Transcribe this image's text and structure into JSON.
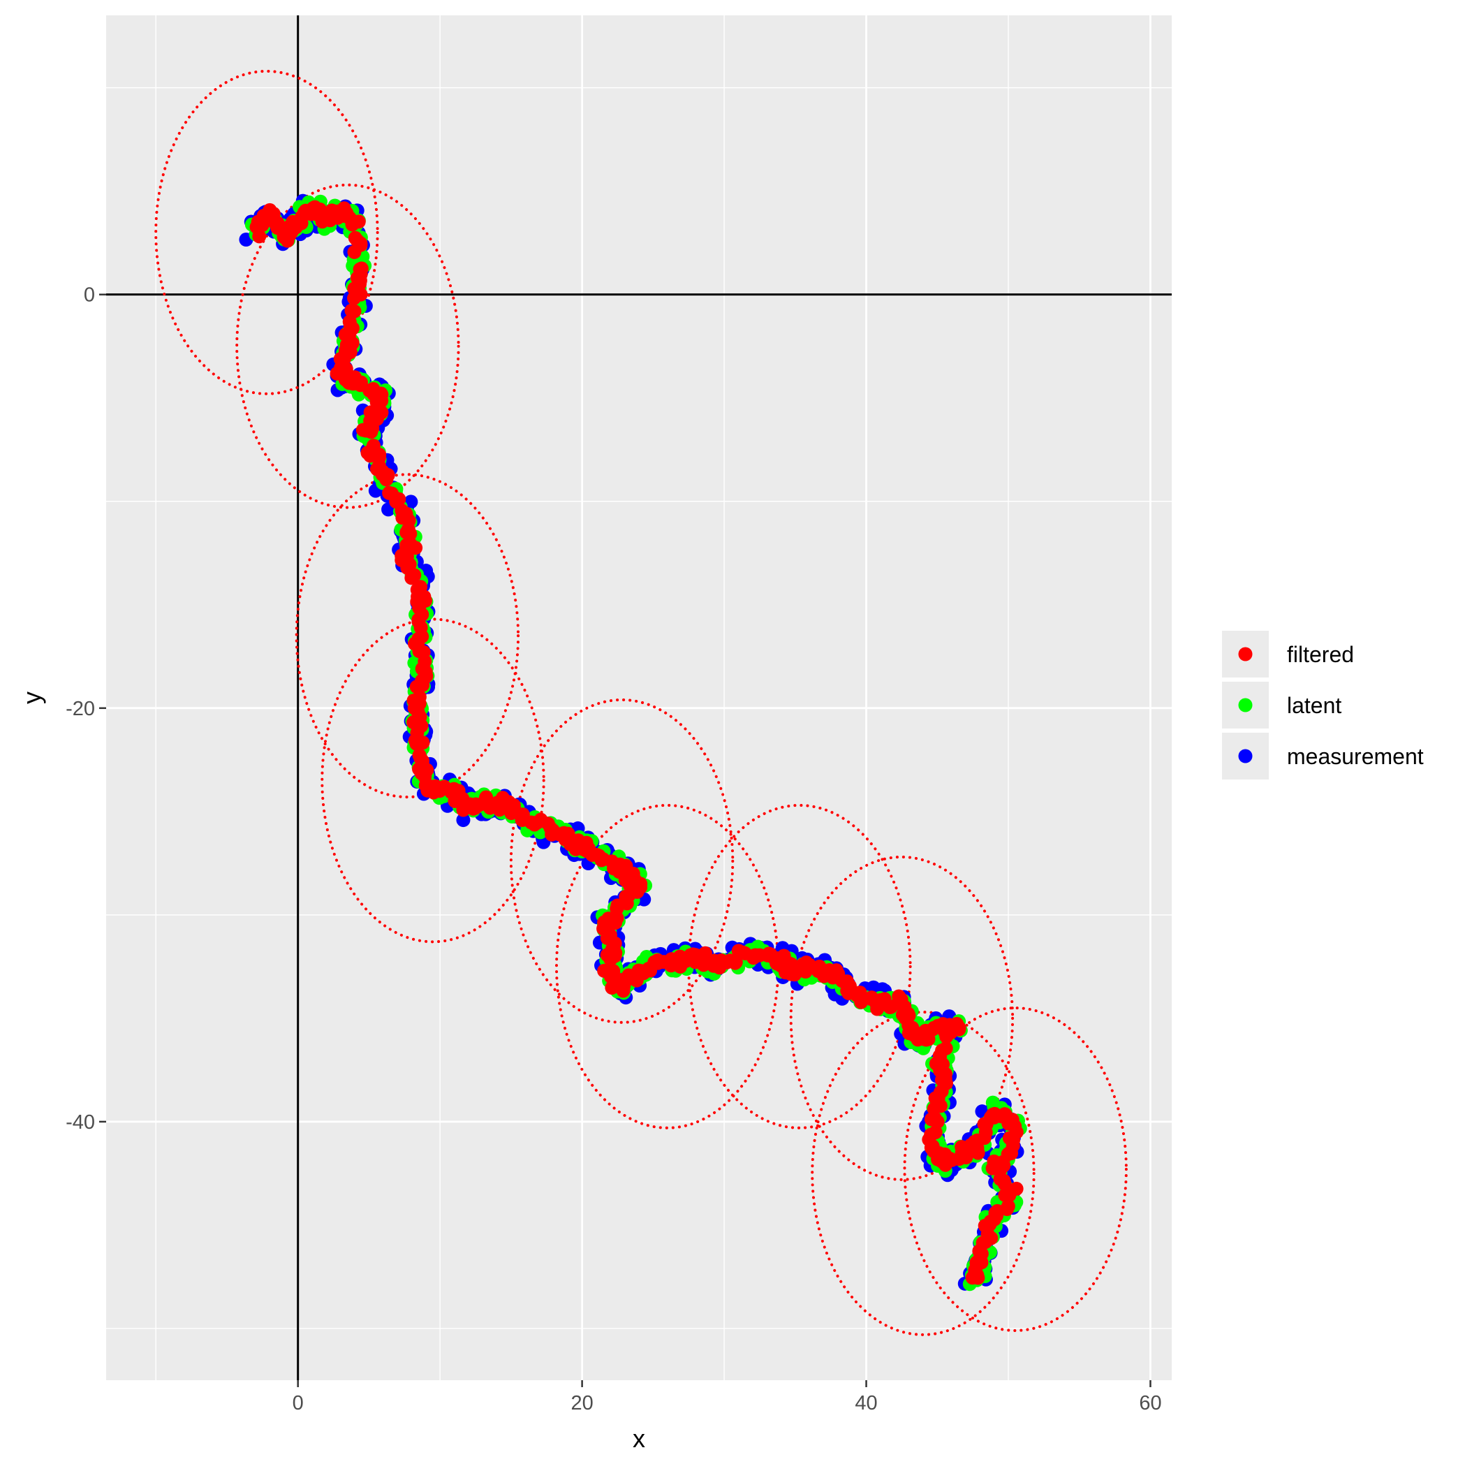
{
  "chart_data": {
    "type": "scatter",
    "title": "",
    "xlabel": "x",
    "ylabel": "y",
    "xlim": [
      -13.5,
      61.5
    ],
    "ylim": [
      -52.5,
      13.5
    ],
    "x_ticks": [
      0,
      20,
      40,
      60
    ],
    "x_tick_labels": [
      "0",
      "20",
      "40",
      "60"
    ],
    "y_ticks": [
      -40,
      -20,
      0
    ],
    "y_tick_labels": [
      "-40",
      "-20",
      "0"
    ],
    "x_minor_gridlines": [
      -10,
      10,
      30,
      50
    ],
    "y_minor_gridlines": [
      -50,
      -30,
      -10,
      10
    ],
    "grid": true,
    "reference_lines": {
      "x": 0,
      "y": 0
    },
    "legend": {
      "position": "right",
      "entries": [
        {
          "label": "filtered",
          "color": "#ff0000"
        },
        {
          "label": "latent",
          "color": "#00ff00"
        },
        {
          "label": "measurement",
          "color": "#0000ff"
        }
      ]
    },
    "path_waypoints": [
      [
        -3.0,
        3.0
      ],
      [
        -2.0,
        3.8
      ],
      [
        -1.0,
        2.8
      ],
      [
        0.0,
        3.5
      ],
      [
        1.0,
        4.2
      ],
      [
        2.0,
        3.5
      ],
      [
        3.0,
        4.0
      ],
      [
        4.0,
        3.6
      ],
      [
        4.3,
        1.5
      ],
      [
        4.2,
        0.0
      ],
      [
        3.7,
        -1.5
      ],
      [
        3.5,
        -2.8
      ],
      [
        3.0,
        -4.0
      ],
      [
        4.0,
        -4.3
      ],
      [
        5.5,
        -4.9
      ],
      [
        6.0,
        -5.3
      ],
      [
        4.8,
        -6.5
      ],
      [
        5.5,
        -8.0
      ],
      [
        6.2,
        -9.0
      ],
      [
        7.5,
        -10.5
      ],
      [
        8.0,
        -12.0
      ],
      [
        7.5,
        -12.8
      ],
      [
        8.5,
        -14.0
      ],
      [
        8.8,
        -15.5
      ],
      [
        8.5,
        -17.0
      ],
      [
        8.8,
        -18.5
      ],
      [
        8.3,
        -20.0
      ],
      [
        8.5,
        -21.5
      ],
      [
        8.6,
        -23.0
      ],
      [
        9.5,
        -23.8
      ],
      [
        11.0,
        -24.2
      ],
      [
        12.0,
        -24.8
      ],
      [
        13.5,
        -24.5
      ],
      [
        15.0,
        -24.8
      ],
      [
        16.5,
        -25.5
      ],
      [
        18.0,
        -26.0
      ],
      [
        19.5,
        -26.5
      ],
      [
        20.5,
        -26.8
      ],
      [
        22.0,
        -27.5
      ],
      [
        23.5,
        -28.2
      ],
      [
        24.0,
        -28.8
      ],
      [
        22.5,
        -29.8
      ],
      [
        21.5,
        -30.5
      ],
      [
        22.3,
        -31.5
      ],
      [
        21.8,
        -32.5
      ],
      [
        22.5,
        -33.5
      ],
      [
        23.5,
        -33.0
      ],
      [
        24.5,
        -32.5
      ],
      [
        26.5,
        -32.3
      ],
      [
        28.0,
        -32.0
      ],
      [
        29.5,
        -32.5
      ],
      [
        31.0,
        -32.0
      ],
      [
        33.0,
        -31.8
      ],
      [
        34.0,
        -32.2
      ],
      [
        35.0,
        -32.8
      ],
      [
        36.5,
        -32.5
      ],
      [
        38.0,
        -33.0
      ],
      [
        39.5,
        -34.0
      ],
      [
        41.0,
        -34.3
      ],
      [
        42.5,
        -34.2
      ],
      [
        43.0,
        -35.5
      ],
      [
        44.0,
        -36.0
      ],
      [
        45.0,
        -35.5
      ],
      [
        46.5,
        -35.5
      ],
      [
        45.0,
        -37.0
      ],
      [
        45.5,
        -38.0
      ],
      [
        45.0,
        -39.5
      ],
      [
        44.5,
        -41.0
      ],
      [
        45.5,
        -42.0
      ],
      [
        47.0,
        -41.5
      ],
      [
        48.0,
        -41.0
      ],
      [
        49.0,
        -39.5
      ],
      [
        50.5,
        -40.0
      ],
      [
        50.0,
        -41.5
      ],
      [
        49.0,
        -42.5
      ],
      [
        50.5,
        -43.5
      ],
      [
        49.0,
        -44.5
      ],
      [
        48.5,
        -45.5
      ],
      [
        48.0,
        -47.0
      ],
      [
        47.5,
        -47.5
      ]
    ],
    "confidence_ellipses": [
      {
        "cx": -2.2,
        "cy": 3.0,
        "rx": 7.8,
        "ry": 7.8
      },
      {
        "cx": 3.5,
        "cy": -2.5,
        "rx": 7.8,
        "ry": 7.8
      },
      {
        "cx": 7.7,
        "cy": -16.5,
        "rx": 7.8,
        "ry": 7.8
      },
      {
        "cx": 9.5,
        "cy": -23.5,
        "rx": 7.8,
        "ry": 7.8
      },
      {
        "cx": 22.8,
        "cy": -27.4,
        "rx": 7.8,
        "ry": 7.8
      },
      {
        "cx": 26.0,
        "cy": -32.5,
        "rx": 7.8,
        "ry": 7.8
      },
      {
        "cx": 35.3,
        "cy": -32.5,
        "rx": 7.8,
        "ry": 7.8
      },
      {
        "cx": 42.5,
        "cy": -35.0,
        "rx": 7.8,
        "ry": 7.8
      },
      {
        "cx": 44.0,
        "cy": -42.5,
        "rx": 7.8,
        "ry": 7.8
      },
      {
        "cx": 50.5,
        "cy": -42.3,
        "rx": 7.8,
        "ry": 7.8
      }
    ]
  }
}
